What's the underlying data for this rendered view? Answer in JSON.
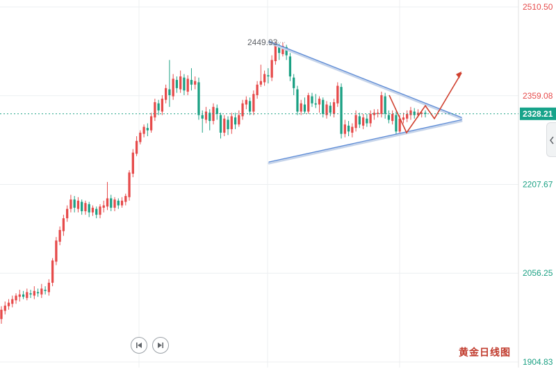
{
  "chart_data": {
    "type": "candlestick",
    "title": "",
    "xlabel": "",
    "ylabel": "",
    "ylim": [
      1904.83,
      2510.5
    ],
    "y_ticks": [
      {
        "value": 2510.5,
        "label": "2510.50",
        "color": "#e64a4a"
      },
      {
        "value": 2359.08,
        "label": "2359.08",
        "color": "#e64a4a"
      },
      {
        "value": 2207.67,
        "label": "2207.67",
        "color": "#1aa083"
      },
      {
        "value": 2056.25,
        "label": "2056.25",
        "color": "#1aa083"
      },
      {
        "value": 1904.83,
        "label": "1904.83",
        "color": "#1aa083"
      }
    ],
    "current_price": {
      "value": 2328.21,
      "label": "2328.21"
    },
    "high_marker": {
      "value": 2449.93,
      "label": "2449.93"
    },
    "colors": {
      "up": "#e64a4a",
      "down": "#1aa083",
      "trendline": "#5b8ad6",
      "projection": "#d0402f"
    },
    "grid": true,
    "candles": [
      [
        1978,
        1994,
        1970,
        2000
      ],
      [
        1992,
        2001,
        1986,
        2008
      ],
      [
        2000,
        2006,
        1994,
        2012
      ],
      [
        2004,
        2012,
        1998,
        2018
      ],
      [
        2010,
        2018,
        2004,
        2022
      ],
      [
        2016,
        2020,
        2008,
        2028
      ],
      [
        2020,
        2016,
        2012,
        2026
      ],
      [
        2014,
        2024,
        2010,
        2030
      ],
      [
        2022,
        2020,
        2014,
        2028
      ],
      [
        2018,
        2026,
        2012,
        2034
      ],
      [
        2024,
        2022,
        2016,
        2030
      ],
      [
        2020,
        2030,
        2014,
        2038
      ],
      [
        2028,
        2026,
        2020,
        2034
      ],
      [
        2024,
        2040,
        2018,
        2046
      ],
      [
        2040,
        2078,
        2034,
        2082
      ],
      [
        2076,
        2112,
        2070,
        2118
      ],
      [
        2110,
        2130,
        2104,
        2136
      ],
      [
        2128,
        2150,
        2120,
        2156
      ],
      [
        2150,
        2166,
        2144,
        2172
      ],
      [
        2166,
        2182,
        2160,
        2190
      ],
      [
        2182,
        2168,
        2160,
        2188
      ],
      [
        2166,
        2180,
        2160,
        2186
      ],
      [
        2178,
        2162,
        2156,
        2182
      ],
      [
        2162,
        2176,
        2156,
        2180
      ],
      [
        2174,
        2160,
        2152,
        2178
      ],
      [
        2160,
        2168,
        2154,
        2172
      ],
      [
        2166,
        2156,
        2150,
        2170
      ],
      [
        2156,
        2170,
        2150,
        2174
      ],
      [
        2168,
        2172,
        2160,
        2180
      ],
      [
        2170,
        2184,
        2164,
        2212
      ],
      [
        2184,
        2168,
        2162,
        2190
      ],
      [
        2168,
        2182,
        2162,
        2186
      ],
      [
        2180,
        2172,
        2166,
        2184
      ],
      [
        2172,
        2180,
        2168,
        2186
      ],
      [
        2178,
        2188,
        2172,
        2192
      ],
      [
        2186,
        2228,
        2180,
        2232
      ],
      [
        2226,
        2262,
        2220,
        2268
      ],
      [
        2260,
        2282,
        2256,
        2290
      ],
      [
        2280,
        2296,
        2276,
        2300
      ],
      [
        2294,
        2306,
        2288,
        2310
      ],
      [
        2304,
        2300,
        2290,
        2312
      ],
      [
        2300,
        2324,
        2296,
        2330
      ],
      [
        2322,
        2348,
        2316,
        2354
      ],
      [
        2346,
        2334,
        2326,
        2352
      ],
      [
        2332,
        2354,
        2326,
        2360
      ],
      [
        2352,
        2372,
        2346,
        2378
      ],
      [
        2370,
        2360,
        2340,
        2420
      ],
      [
        2358,
        2388,
        2352,
        2396
      ],
      [
        2386,
        2372,
        2364,
        2392
      ],
      [
        2370,
        2392,
        2364,
        2402
      ],
      [
        2390,
        2368,
        2360,
        2396
      ],
      [
        2366,
        2388,
        2360,
        2394
      ],
      [
        2386,
        2378,
        2368,
        2406
      ],
      [
        2378,
        2384,
        2370,
        2392
      ],
      [
        2382,
        2326,
        2318,
        2390
      ],
      [
        2326,
        2320,
        2296,
        2334
      ],
      [
        2318,
        2332,
        2312,
        2340
      ],
      [
        2330,
        2316,
        2300,
        2336
      ],
      [
        2316,
        2340,
        2310,
        2346
      ],
      [
        2338,
        2328,
        2318,
        2344
      ],
      [
        2326,
        2296,
        2286,
        2330
      ],
      [
        2296,
        2320,
        2290,
        2326
      ],
      [
        2318,
        2302,
        2292,
        2324
      ],
      [
        2302,
        2324,
        2294,
        2330
      ],
      [
        2322,
        2310,
        2302,
        2330
      ],
      [
        2310,
        2326,
        2306,
        2334
      ],
      [
        2324,
        2346,
        2318,
        2352
      ],
      [
        2344,
        2352,
        2336,
        2358
      ],
      [
        2350,
        2332,
        2326,
        2356
      ],
      [
        2332,
        2362,
        2326,
        2368
      ],
      [
        2360,
        2378,
        2354,
        2384
      ],
      [
        2378,
        2384,
        2374,
        2412
      ],
      [
        2382,
        2396,
        2376,
        2402
      ],
      [
        2394,
        2392,
        2380,
        2406
      ],
      [
        2390,
        2420,
        2384,
        2428
      ],
      [
        2418,
        2444,
        2412,
        2450
      ],
      [
        2442,
        2432,
        2420,
        2448
      ],
      [
        2430,
        2444,
        2426,
        2450
      ],
      [
        2442,
        2428,
        2420,
        2446
      ],
      [
        2426,
        2392,
        2384,
        2432
      ],
      [
        2390,
        2372,
        2360,
        2396
      ],
      [
        2370,
        2332,
        2326,
        2376
      ],
      [
        2332,
        2346,
        2326,
        2352
      ],
      [
        2344,
        2332,
        2328,
        2356
      ],
      [
        2332,
        2360,
        2328,
        2364
      ],
      [
        2358,
        2346,
        2340,
        2364
      ],
      [
        2346,
        2344,
        2338,
        2362
      ],
      [
        2344,
        2354,
        2330,
        2358
      ],
      [
        2352,
        2328,
        2322,
        2356
      ],
      [
        2326,
        2344,
        2320,
        2350
      ],
      [
        2342,
        2330,
        2324,
        2348
      ],
      [
        2328,
        2348,
        2322,
        2354
      ],
      [
        2346,
        2376,
        2340,
        2382
      ],
      [
        2374,
        2294,
        2286,
        2380
      ],
      [
        2294,
        2310,
        2288,
        2318
      ],
      [
        2308,
        2298,
        2290,
        2316
      ],
      [
        2296,
        2306,
        2288,
        2312
      ],
      [
        2304,
        2326,
        2298,
        2334
      ],
      [
        2324,
        2310,
        2304,
        2330
      ],
      [
        2308,
        2322,
        2302,
        2328
      ],
      [
        2320,
        2312,
        2306,
        2328
      ],
      [
        2312,
        2328,
        2306,
        2334
      ],
      [
        2326,
        2330,
        2318,
        2336
      ],
      [
        2328,
        2330,
        2322,
        2336
      ],
      [
        2328,
        2360,
        2322,
        2366
      ],
      [
        2358,
        2328,
        2320,
        2364
      ],
      [
        2326,
        2318,
        2312,
        2334
      ],
      [
        2316,
        2328,
        2310,
        2334
      ],
      [
        2326,
        2298,
        2290,
        2332
      ],
      [
        2298,
        2320,
        2294,
        2326
      ],
      [
        2318,
        2322,
        2312,
        2330
      ],
      [
        2320,
        2328,
        2314,
        2334
      ],
      [
        2326,
        2334,
        2318,
        2340
      ],
      [
        2332,
        2326,
        2320,
        2338
      ],
      [
        2326,
        2330,
        2322,
        2336
      ],
      [
        2328,
        2330,
        2322,
        2334
      ],
      [
        2330,
        2328,
        2322,
        2334
      ]
    ],
    "trend_upper": [
      [
        0.0,
        2452
      ],
      [
        1.0,
        2322
      ]
    ],
    "trend_lower": [
      [
        0.0,
        2246
      ],
      [
        1.0,
        2318
      ]
    ],
    "apex_value": 2320,
    "projection": [
      [
        0,
        2360
      ],
      [
        1,
        2296
      ],
      [
        2,
        2342
      ],
      [
        3,
        2320
      ],
      [
        4,
        2398
      ]
    ]
  },
  "labels": {
    "watermark": "黄金日线图"
  },
  "icons": {
    "prev": "skip-previous-icon",
    "next": "skip-next-icon",
    "side": "chevron-left-icon"
  }
}
